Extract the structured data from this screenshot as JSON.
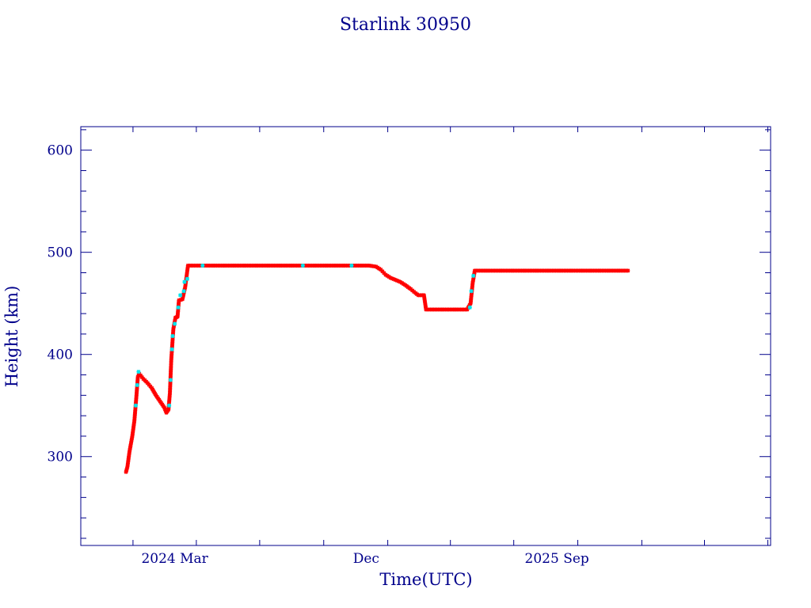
{
  "chart_data": {
    "type": "scatter",
    "title": "Starlink 30950",
    "xlabel": "Time(UTC)",
    "ylabel": "Height (km)",
    "x_scale": "time",
    "xlim": [
      "2023-10-18",
      "2026-07-05"
    ],
    "ylim": [
      213,
      623
    ],
    "x_ticks": [
      {
        "value": "2024-03-01",
        "label": "2024 Mar"
      },
      {
        "value": "2024-12-01",
        "label": "Dec"
      },
      {
        "value": "2025-09-01",
        "label": "2025 Sep"
      }
    ],
    "y_ticks": [
      300,
      400,
      500,
      600
    ],
    "grid": false,
    "colors": {
      "frame": "#00008b",
      "series_red": "#ff0000",
      "series_cyan": "#00e5ee"
    },
    "series": [
      {
        "color": "#ff0000",
        "points": [
          [
            "2023-12-22",
            285
          ],
          [
            "2023-12-24",
            290
          ],
          [
            "2023-12-27",
            305
          ],
          [
            "2023-12-31",
            320
          ],
          [
            "2024-01-03",
            335
          ],
          [
            "2024-01-06",
            360
          ],
          [
            "2024-01-08",
            378
          ],
          [
            "2024-01-10",
            381
          ],
          [
            "2024-01-16",
            376
          ],
          [
            "2024-01-22",
            372
          ],
          [
            "2024-01-28",
            367
          ],
          [
            "2024-02-03",
            360
          ],
          [
            "2024-02-09",
            354
          ],
          [
            "2024-02-15",
            348
          ],
          [
            "2024-02-18",
            343
          ],
          [
            "2024-02-21",
            346
          ],
          [
            "2024-02-23",
            362
          ],
          [
            "2024-02-25",
            395
          ],
          [
            "2024-02-28",
            425
          ],
          [
            "2024-03-02",
            436
          ],
          [
            "2024-03-05",
            437
          ],
          [
            "2024-03-07",
            453
          ],
          [
            "2024-03-12",
            454
          ],
          [
            "2024-03-16",
            466
          ],
          [
            "2024-03-20",
            487
          ],
          [
            "2024-04-15",
            487
          ],
          [
            "2024-06-01",
            487
          ],
          [
            "2024-08-01",
            487
          ],
          [
            "2024-10-01",
            487
          ],
          [
            "2024-11-15",
            487
          ],
          [
            "2024-12-05",
            487
          ],
          [
            "2024-12-15",
            486
          ],
          [
            "2024-12-22",
            483
          ],
          [
            "2024-12-29",
            478
          ],
          [
            "2025-01-05",
            475
          ],
          [
            "2025-01-12",
            473
          ],
          [
            "2025-01-19",
            471
          ],
          [
            "2025-01-26",
            468
          ],
          [
            "2025-02-03",
            464
          ],
          [
            "2025-02-10",
            460
          ],
          [
            "2025-02-14",
            458
          ],
          [
            "2025-02-22",
            458
          ],
          [
            "2025-02-25",
            444
          ],
          [
            "2025-03-10",
            444
          ],
          [
            "2025-04-01",
            444
          ],
          [
            "2025-04-25",
            444
          ],
          [
            "2025-04-30",
            450
          ],
          [
            "2025-05-03",
            470
          ],
          [
            "2025-05-06",
            482
          ],
          [
            "2025-06-01",
            482
          ],
          [
            "2025-08-01",
            482
          ],
          [
            "2025-10-01",
            482
          ],
          [
            "2025-11-20",
            482
          ],
          [
            "2025-12-12",
            482
          ]
        ]
      },
      {
        "color": "#00e5ee",
        "points": [
          [
            "2024-01-05",
            350
          ],
          [
            "2024-01-07",
            370
          ],
          [
            "2024-01-09",
            383
          ],
          [
            "2024-02-22",
            350
          ],
          [
            "2024-02-24",
            375
          ],
          [
            "2024-02-26",
            405
          ],
          [
            "2024-02-27",
            418
          ],
          [
            "2024-03-01",
            430
          ],
          [
            "2024-03-06",
            446
          ],
          [
            "2024-03-09",
            458
          ],
          [
            "2024-03-14",
            462
          ],
          [
            "2024-03-15",
            471
          ],
          [
            "2024-03-19",
            474
          ],
          [
            "2024-04-10",
            487
          ],
          [
            "2024-09-01",
            487
          ],
          [
            "2024-11-10",
            487
          ],
          [
            "2025-04-29",
            446
          ],
          [
            "2025-05-01",
            462
          ],
          [
            "2025-05-04",
            477
          ]
        ]
      }
    ]
  }
}
